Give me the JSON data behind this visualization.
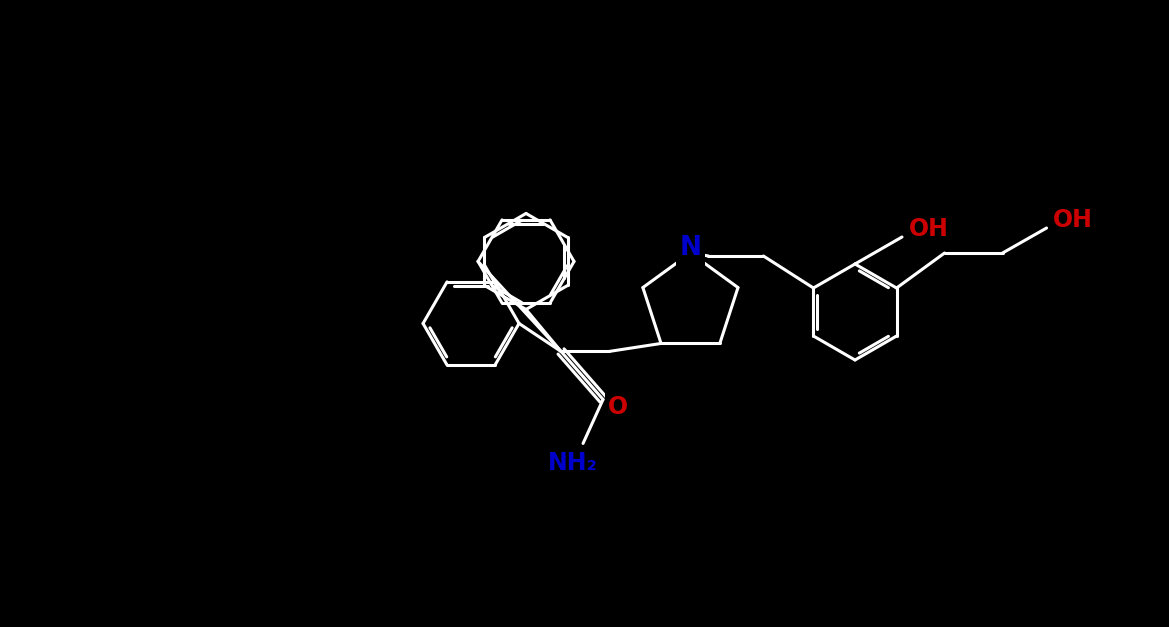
{
  "bg_color": "#000000",
  "bond_color": "#ffffff",
  "N_color": "#0000cc",
  "O_color": "#cc0000",
  "font_size_label": 16,
  "line_width": 2.2,
  "xlim": [
    0,
    11.69
  ],
  "ylim": [
    0,
    6.27
  ]
}
